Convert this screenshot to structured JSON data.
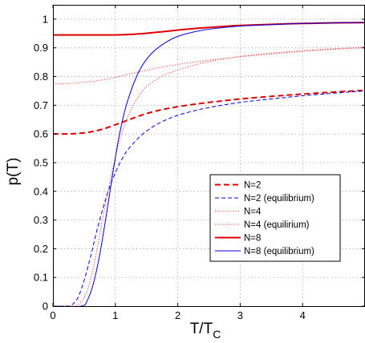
{
  "chart_data": {
    "type": "line",
    "xlabel": "T/T",
    "xlabel_sub": "C",
    "ylabel": "p(T)",
    "xlim": [
      0,
      5
    ],
    "ylim": [
      0,
      1.05
    ],
    "grid": true,
    "legend_placement": "center-right",
    "xticks": [
      0,
      1,
      2,
      3,
      4
    ],
    "xtick_labels": [
      "0",
      "1",
      "2",
      "3",
      "4"
    ],
    "yticks": [
      0,
      0.1,
      0.2,
      0.3,
      0.4,
      0.5,
      0.6,
      0.7,
      0.8,
      0.9,
      1.0
    ],
    "ytick_labels": [
      "0",
      "0.1",
      "0.2",
      "0.3",
      "0.4",
      "0.5",
      "0.6",
      "0.7",
      "0.8",
      "0.9",
      "1"
    ],
    "series": [
      {
        "name": "N=2",
        "color": "#e00000",
        "dash": "dashed",
        "width": 2,
        "x": [
          0,
          0.2,
          0.4,
          0.6,
          0.8,
          1.0,
          1.2,
          1.4,
          1.6,
          1.8,
          2.0,
          2.25,
          2.5,
          2.75,
          3.0,
          3.5,
          4.0,
          4.5,
          5.0
        ],
        "y": [
          0.6,
          0.6,
          0.602,
          0.607,
          0.617,
          0.632,
          0.648,
          0.664,
          0.677,
          0.687,
          0.695,
          0.703,
          0.71,
          0.716,
          0.722,
          0.731,
          0.739,
          0.746,
          0.752
        ]
      },
      {
        "name": "N=2 (equilibrium)",
        "color": "#0000dd",
        "dash": "dashed",
        "width": 1,
        "x": [
          0,
          0.2,
          0.3,
          0.4,
          0.5,
          0.6,
          0.7,
          0.8,
          0.9,
          1.0,
          1.1,
          1.2,
          1.4,
          1.6,
          1.8,
          2.0,
          2.25,
          2.5,
          3.0,
          3.5,
          4.0,
          4.5,
          5.0
        ],
        "y": [
          0,
          0,
          0.004,
          0.03,
          0.09,
          0.17,
          0.26,
          0.34,
          0.41,
          0.465,
          0.51,
          0.545,
          0.592,
          0.625,
          0.648,
          0.665,
          0.68,
          0.692,
          0.71,
          0.722,
          0.733,
          0.742,
          0.75
        ]
      },
      {
        "name": "N=4",
        "color": "#ff3333",
        "dash": "dotted",
        "width": 1,
        "x": [
          0,
          0.25,
          0.5,
          0.75,
          1.0,
          1.25,
          1.5,
          1.75,
          2.0,
          2.25,
          2.5,
          2.75,
          3.0,
          3.5,
          4.0,
          4.5,
          5.0
        ],
        "y": [
          0.775,
          0.776,
          0.78,
          0.787,
          0.797,
          0.81,
          0.822,
          0.833,
          0.842,
          0.85,
          0.857,
          0.863,
          0.869,
          0.879,
          0.888,
          0.895,
          0.9
        ]
      },
      {
        "name": "N=4 (equilirium)",
        "color": "#ff3333",
        "dash": "dotted",
        "width": 1,
        "x": [
          0,
          0.3,
          0.4,
          0.5,
          0.6,
          0.7,
          0.8,
          0.9,
          1.0,
          1.1,
          1.2,
          1.3,
          1.4,
          1.5,
          1.7,
          2.0,
          2.5,
          3.0,
          3.5,
          4.0,
          4.5,
          5.0
        ],
        "y": [
          0,
          0,
          0.005,
          0.03,
          0.09,
          0.19,
          0.31,
          0.42,
          0.52,
          0.6,
          0.66,
          0.705,
          0.74,
          0.765,
          0.795,
          0.823,
          0.852,
          0.87,
          0.881,
          0.89,
          0.897,
          0.903
        ]
      },
      {
        "name": "N=8",
        "color": "#e00000",
        "dash": "solid",
        "width": 2,
        "x": [
          0,
          0.5,
          1.0,
          1.25,
          1.5,
          1.75,
          2.0,
          2.25,
          2.5,
          2.75,
          3.0,
          3.5,
          4.0,
          4.5,
          5.0
        ],
        "y": [
          0.945,
          0.945,
          0.945,
          0.947,
          0.951,
          0.956,
          0.962,
          0.967,
          0.971,
          0.975,
          0.978,
          0.982,
          0.985,
          0.987,
          0.988
        ]
      },
      {
        "name": "N=8 (equilibrium)",
        "color": "#0000dd",
        "dash": "solid",
        "width": 1,
        "x": [
          0,
          0.45,
          0.55,
          0.65,
          0.75,
          0.85,
          0.95,
          1.05,
          1.15,
          1.25,
          1.35,
          1.45,
          1.6,
          1.8,
          2.0,
          2.25,
          2.5,
          3.0,
          3.5,
          4.0,
          4.5,
          5.0
        ],
        "y": [
          0,
          0,
          0.02,
          0.08,
          0.18,
          0.31,
          0.45,
          0.58,
          0.68,
          0.75,
          0.805,
          0.845,
          0.885,
          0.918,
          0.94,
          0.955,
          0.965,
          0.976,
          0.981,
          0.985,
          0.987,
          0.989
        ]
      }
    ]
  }
}
